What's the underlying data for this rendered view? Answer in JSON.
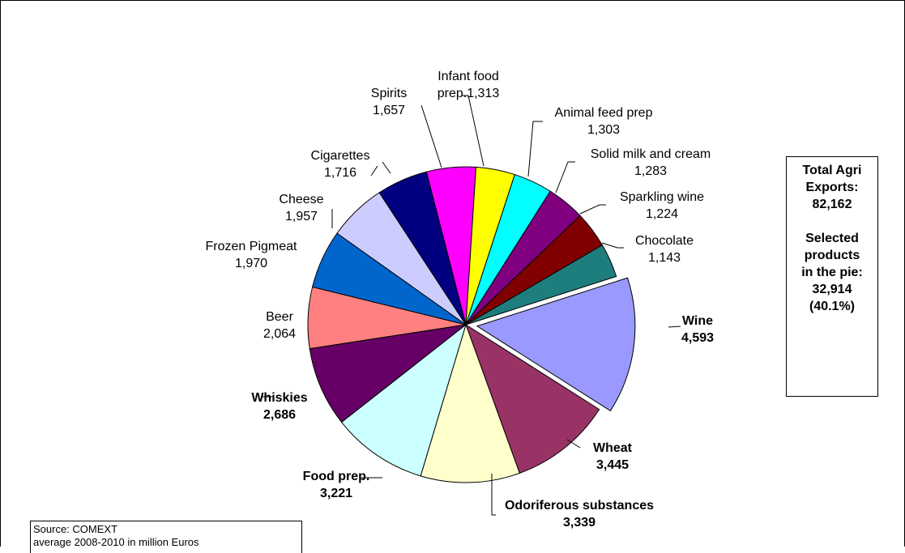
{
  "chart_data": {
    "type": "pie",
    "slices": [
      {
        "label": "Chocolate",
        "value": 1143,
        "value_text": "1,143",
        "color": "#1E7E7E",
        "bold": false
      },
      {
        "label": "Wine",
        "value": 4593,
        "value_text": "4,593",
        "color": "#9999FF",
        "bold": true,
        "exploded": true
      },
      {
        "label": "Wheat",
        "value": 3445,
        "value_text": "3,445",
        "color": "#993366",
        "bold": true
      },
      {
        "label": "Odoriferous substances",
        "value": 3339,
        "value_text": "3,339",
        "color": "#FFFFCC",
        "bold": true
      },
      {
        "label": "Food prep.",
        "value": 3221,
        "value_text": "3,221",
        "color": "#CCFFFF",
        "bold": true
      },
      {
        "label": "Whiskies",
        "value": 2686,
        "value_text": "2,686",
        "color": "#660066",
        "bold": true
      },
      {
        "label": "Beer",
        "value": 2064,
        "value_text": "2,064",
        "color": "#FF8080",
        "bold": false
      },
      {
        "label": "Frozen Pigmeat",
        "value": 1970,
        "value_text": "1,970",
        "color": "#0066CC",
        "bold": false
      },
      {
        "label": "Cheese",
        "value": 1957,
        "value_text": "1,957",
        "color": "#CCCCFF",
        "bold": false
      },
      {
        "label": "Cigarettes",
        "value": 1716,
        "value_text": "1,716",
        "color": "#000080",
        "bold": false
      },
      {
        "label": "Spirits",
        "value": 1657,
        "value_text": "1,657",
        "color": "#FF00FF",
        "bold": false
      },
      {
        "label": "Infant food prep.",
        "value": 1313,
        "value_text": "1,313",
        "color": "#FFFF00",
        "bold": false
      },
      {
        "label": "Animal feed prep",
        "value": 1303,
        "value_text": "1,303",
        "color": "#00FFFF",
        "bold": false
      },
      {
        "label": "Solid milk and cream",
        "value": 1283,
        "value_text": "1,283",
        "color": "#800080",
        "bold": false
      },
      {
        "label": "Sparkling wine",
        "value": 1224,
        "value_text": "1,224",
        "color": "#800000",
        "bold": false
      }
    ],
    "labels": {
      "spirits": [
        "Spirits",
        "1,657"
      ],
      "infant": [
        "Infant food",
        "prep.1,313"
      ],
      "animal": [
        "Animal feed prep",
        "1,303"
      ],
      "milk": [
        "Solid milk and cream",
        "1,283"
      ],
      "sparkling": [
        "Sparkling wine",
        "1,224"
      ],
      "chocolate": [
        "Chocolate",
        "1,143"
      ],
      "wine": [
        "Wine",
        "4,593"
      ],
      "wheat": [
        "Wheat",
        "3,445"
      ],
      "odor": [
        "Odoriferous substances",
        "3,339"
      ],
      "foodprep": [
        "Food prep.",
        "3,221"
      ],
      "whiskies": [
        "Whiskies",
        "2,686"
      ],
      "beer": [
        "Beer",
        "2,064"
      ],
      "pigmeat": [
        "Frozen Pigmeat",
        "1,970"
      ],
      "cheese": [
        "Cheese",
        "1,957"
      ],
      "cigarettes": [
        "Cigarettes",
        "1,716"
      ]
    }
  },
  "total_box": {
    "line1": "Total Agri",
    "line2": "Exports:",
    "line3": "82,162",
    "line4": "Selected",
    "line5": "products",
    "line6": "in the pie:",
    "line7": "32,914",
    "line8": "(40.1%)"
  },
  "source": {
    "line1": "Source: COMEXT",
    "line2": "average 2008-2010 in million Euros"
  }
}
